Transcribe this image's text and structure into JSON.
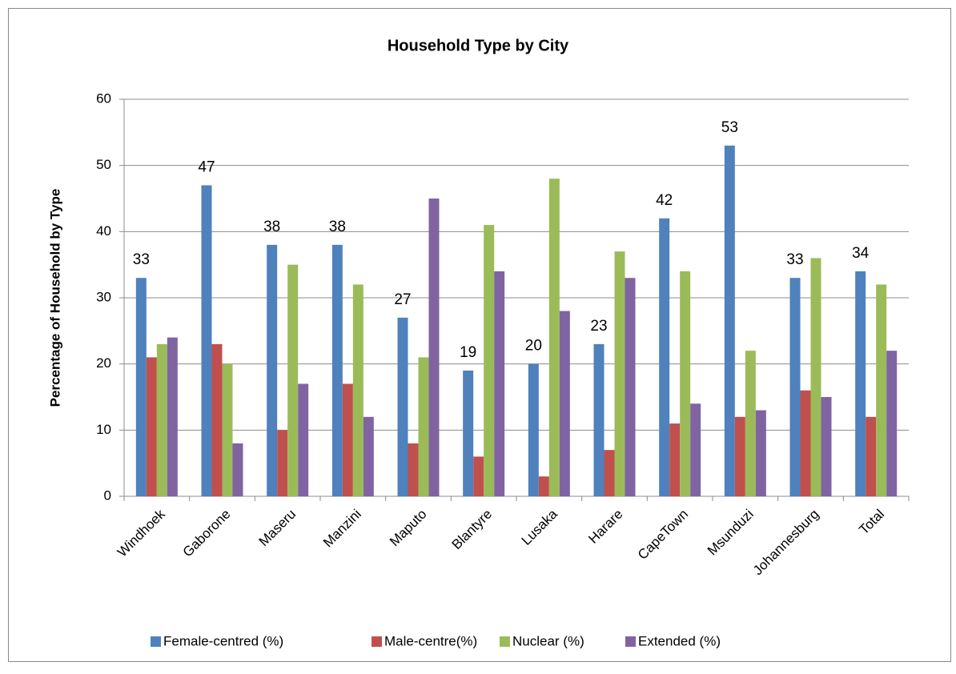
{
  "chart_data": {
    "type": "bar",
    "title": "Household Type by City",
    "y_label": "Percentage of Household by Type",
    "categories": [
      "Windhoek",
      "Gaborone",
      "Maseru",
      "Manzini",
      "Maputo",
      "Blantyre",
      "Lusaka",
      "Harare",
      "CapeTown",
      "Msunduzi",
      "Johannesburg",
      "Total"
    ],
    "series": [
      {
        "name": "Female-centred (%)",
        "color": "#4f81bd",
        "data_labels": true,
        "values": [
          33,
          47,
          38,
          38,
          27,
          19,
          20,
          23,
          42,
          53,
          33,
          34
        ]
      },
      {
        "name": "Male-centre(%)",
        "color": "#c0504d",
        "values": [
          21,
          23,
          10,
          17,
          8,
          6,
          3,
          7,
          11,
          12,
          16,
          12
        ]
      },
      {
        "name": "Nuclear (%)",
        "color": "#9bbb59",
        "values": [
          23,
          20,
          35,
          32,
          21,
          41,
          48,
          37,
          34,
          22,
          36,
          32
        ]
      },
      {
        "name": "Extended (%)",
        "color": "#8064a2",
        "values": [
          24,
          8,
          17,
          12,
          45,
          34,
          28,
          33,
          14,
          13,
          15,
          22
        ]
      }
    ],
    "ylim": [
      0,
      60
    ],
    "yticks": [
      0,
      10,
      20,
      30,
      40,
      50,
      60
    ],
    "grid": true,
    "legend": "bottom"
  }
}
